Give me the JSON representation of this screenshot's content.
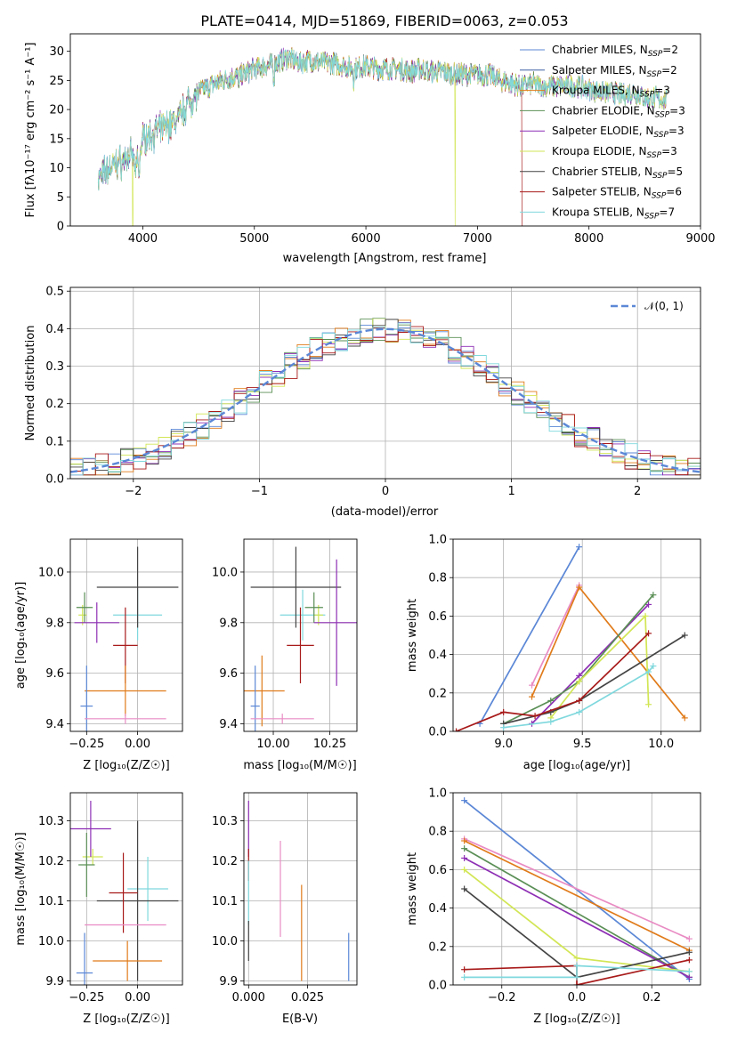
{
  "title": "PLATE=0414, MJD=51869, FIBERID=0063, z=0.053",
  "colors": {
    "chabrier_miles": "#5b87d6",
    "salpeter_miles": "#3e5fa6",
    "kroupa_miles": "#e07b1a",
    "chabrier_elodie": "#5a8f55",
    "salpeter_elodie": "#8e2fb5",
    "kroupa_elodie": "#d2e655",
    "chabrier_stelib": "#444444",
    "salpeter_stelib": "#a81a1a",
    "kroupa_stelib": "#7fd8dd",
    "pink": "#e98cc4",
    "normal": "#5b87d6",
    "grid": "#b0b0b0"
  },
  "chart_data": [
    {
      "id": "spectrum",
      "type": "line",
      "title": "PLATE=0414, MJD=51869, FIBERID=0063, z=0.053",
      "xlabel": "wavelength [Angstrom, rest frame]",
      "ylabel": "Flux [fλ10⁻¹⁷ erg cm⁻² s⁻¹ A⁻¹]",
      "xlim": [
        3350,
        9000
      ],
      "ylim": [
        0,
        33
      ],
      "xticks": [
        "4000",
        "5000",
        "6000",
        "7000",
        "8000",
        "9000"
      ],
      "yticks": [
        "0",
        "5",
        "10",
        "15",
        "20",
        "25",
        "30"
      ],
      "grid": false,
      "legend_position": "top-right",
      "legend": [
        "Chabrier MILES, N_SSP=2",
        "Salpeter MILES, N_SSP=2",
        "Kroupa MILES, N_SSP=3",
        "Chabrier ELODIE, N_SSP=3",
        "Salpeter ELODIE, N_SSP=3",
        "Kroupa ELODIE, N_SSP=3",
        "Chabrier STELIB, N_SSP=5",
        "Salpeter STELIB, N_SSP=6",
        "Kroupa STELIB, N_SSP=7"
      ],
      "continuum": [
        [
          3600,
          8
        ],
        [
          3700,
          10
        ],
        [
          3800,
          11
        ],
        [
          3900,
          12
        ],
        [
          3950,
          11
        ],
        [
          4000,
          15
        ],
        [
          4100,
          16
        ],
        [
          4200,
          17
        ],
        [
          4300,
          18
        ],
        [
          4400,
          21
        ],
        [
          4500,
          23
        ],
        [
          4600,
          24
        ],
        [
          4700,
          25
        ],
        [
          4800,
          25.5
        ],
        [
          4900,
          26
        ],
        [
          5000,
          27
        ],
        [
          5100,
          27.5
        ],
        [
          5200,
          28
        ],
        [
          5300,
          29
        ],
        [
          5400,
          28
        ],
        [
          5500,
          28.5
        ],
        [
          5600,
          28
        ],
        [
          5700,
          28
        ],
        [
          5800,
          27.5
        ],
        [
          5900,
          27
        ],
        [
          6000,
          27.5
        ],
        [
          6100,
          27
        ],
        [
          6200,
          27
        ],
        [
          6300,
          27
        ],
        [
          6400,
          26.5
        ],
        [
          6500,
          27
        ],
        [
          6600,
          26.5
        ],
        [
          6700,
          26.5
        ],
        [
          6800,
          26
        ],
        [
          6900,
          26
        ],
        [
          7000,
          26
        ],
        [
          7100,
          26
        ],
        [
          7200,
          25
        ],
        [
          7300,
          24.5
        ],
        [
          7400,
          24
        ],
        [
          7500,
          24.5
        ],
        [
          7600,
          24
        ],
        [
          7700,
          24
        ],
        [
          7800,
          24
        ],
        [
          7900,
          24
        ],
        [
          8000,
          23.5
        ],
        [
          8100,
          23
        ],
        [
          8200,
          23
        ],
        [
          8300,
          22.5
        ],
        [
          8400,
          23
        ],
        [
          8500,
          22
        ],
        [
          8600,
          22
        ],
        [
          8700,
          21.5
        ]
      ]
    },
    {
      "id": "residuals",
      "type": "histogram",
      "xlabel": "(data-model)/error",
      "ylabel": "Normed distribution",
      "xlim": [
        -2.5,
        2.5
      ],
      "ylim": [
        0,
        0.51
      ],
      "xticks": [
        "−2",
        "−1",
        "0",
        "1",
        "2"
      ],
      "yticks": [
        "0.0",
        "0.1",
        "0.2",
        "0.3",
        "0.4",
        "0.5"
      ],
      "grid": true,
      "legend_position": "top-right",
      "legend": [
        "𝒩(0, 1)"
      ]
    },
    {
      "id": "age_vs_Z",
      "type": "errorbar",
      "xlabel": "Z [log₁₀(Z/Z☉)]",
      "ylabel": "age  [log₁₀(age/yr)]",
      "xlim": [
        -0.33,
        0.22
      ],
      "ylim": [
        9.37,
        10.13
      ],
      "xticks": [
        "−0.25",
        "0.00"
      ],
      "yticks": [
        "9.4",
        "9.6",
        "9.8",
        "10.0"
      ],
      "grid": true,
      "points": [
        {
          "c": "kroupa_stelib",
          "x": 0.0,
          "y": 9.83,
          "ex": 0.12,
          "ey": 0.1
        },
        {
          "c": "chabrier_stelib",
          "x": 0.0,
          "y": 9.94,
          "ex": 0.2,
          "ey": 0.16
        },
        {
          "c": "kroupa_elodie",
          "x": -0.27,
          "y": 9.83,
          "ex": 0.02,
          "ey": 0.04
        },
        {
          "c": "chabrier_elodie",
          "x": -0.26,
          "y": 9.86,
          "ex": 0.04,
          "ey": 0.06
        },
        {
          "c": "salpeter_elodie",
          "x": -0.2,
          "y": 9.8,
          "ex": 0.11,
          "ey": 0.08
        },
        {
          "c": "salpeter_stelib",
          "x": -0.06,
          "y": 9.71,
          "ex": 0.06,
          "ey": 0.15
        },
        {
          "c": "kroupa_miles",
          "x": -0.06,
          "y": 9.53,
          "ex": 0.2,
          "ey": 0.1
        },
        {
          "c": "chabrier_miles",
          "x": -0.25,
          "y": 9.47,
          "ex": 0.03,
          "ey": 0.16
        },
        {
          "c": "pink",
          "x": -0.06,
          "y": 9.42,
          "ex": 0.2,
          "ey": 0.02
        }
      ]
    },
    {
      "id": "age_vs_mass",
      "type": "errorbar",
      "xlabel": "mass [log₁₀(M/M☉)]",
      "ylabel": "",
      "xlim": [
        9.87,
        10.37
      ],
      "ylim": [
        9.37,
        10.13
      ],
      "xticks": [
        "10.00",
        "10.25"
      ],
      "yticks": [
        "9.4",
        "9.6",
        "9.8",
        "10.0"
      ],
      "grid": true,
      "points": [
        {
          "c": "kroupa_stelib",
          "x": 10.13,
          "y": 9.83,
          "ex": 0.1,
          "ey": 0.1
        },
        {
          "c": "chabrier_stelib",
          "x": 10.1,
          "y": 9.94,
          "ex": 0.2,
          "ey": 0.16
        },
        {
          "c": "kroupa_elodie",
          "x": 10.2,
          "y": 9.83,
          "ex": 0.02,
          "ey": 0.04
        },
        {
          "c": "chabrier_elodie",
          "x": 10.18,
          "y": 9.86,
          "ex": 0.04,
          "ey": 0.06
        },
        {
          "c": "salpeter_elodie",
          "x": 10.28,
          "y": 9.8,
          "ex": 0.1,
          "ey": 0.25
        },
        {
          "c": "salpeter_stelib",
          "x": 10.12,
          "y": 9.71,
          "ex": 0.06,
          "ey": 0.15
        },
        {
          "c": "kroupa_miles",
          "x": 9.95,
          "y": 9.53,
          "ex": 0.1,
          "ey": 0.14
        },
        {
          "c": "chabrier_miles",
          "x": 9.92,
          "y": 9.47,
          "ex": 0.02,
          "ey": 0.16
        },
        {
          "c": "pink",
          "x": 10.04,
          "y": 9.42,
          "ex": 0.14,
          "ey": 0.02
        }
      ]
    },
    {
      "id": "mass_weight_vs_age",
      "type": "line",
      "xlabel": "age  [log₁₀(age/yr)]",
      "ylabel": "mass weight",
      "xlim": [
        8.68,
        10.25
      ],
      "ylim": [
        0,
        1.0
      ],
      "xticks": [
        "9.0",
        "9.5",
        "10.0"
      ],
      "yticks": [
        "0.0",
        "0.2",
        "0.4",
        "0.6",
        "0.8",
        "1.0"
      ],
      "grid": true,
      "series": [
        {
          "c": "chabrier_miles",
          "x": [
            8.85,
            9.48
          ],
          "y": [
            0.04,
            0.96
          ]
        },
        {
          "c": "pink",
          "x": [
            9.18,
            9.48
          ],
          "y": [
            0.24,
            0.76
          ]
        },
        {
          "c": "kroupa_miles",
          "x": [
            9.18,
            9.48,
            10.15
          ],
          "y": [
            0.18,
            0.75,
            0.07
          ]
        },
        {
          "c": "salpeter_elodie",
          "x": [
            9.18,
            9.48,
            9.92
          ],
          "y": [
            0.04,
            0.29,
            0.66
          ]
        },
        {
          "c": "chabrier_elodie",
          "x": [
            9.0,
            9.3,
            9.48,
            9.95
          ],
          "y": [
            0.04,
            0.16,
            0.26,
            0.71
          ]
        },
        {
          "c": "kroupa_elodie",
          "x": [
            9.3,
            9.48,
            9.9,
            9.92
          ],
          "y": [
            0.07,
            0.26,
            0.6,
            0.14
          ]
        },
        {
          "c": "chabrier_stelib",
          "x": [
            9.0,
            9.3,
            9.48,
            10.15
          ],
          "y": [
            0.04,
            0.1,
            0.16,
            0.5
          ]
        },
        {
          "c": "salpeter_stelib",
          "x": [
            8.7,
            9.0,
            9.2,
            9.48,
            9.92
          ],
          "y": [
            0.0,
            0.1,
            0.08,
            0.16,
            0.51
          ]
        },
        {
          "c": "kroupa_stelib",
          "x": [
            9.0,
            9.3,
            9.48,
            9.92,
            9.95
          ],
          "y": [
            0.02,
            0.05,
            0.1,
            0.31,
            0.34
          ]
        }
      ]
    },
    {
      "id": "mass_vs_Z",
      "type": "errorbar",
      "xlabel": "Z [log₁₀(Z/Z☉)]",
      "ylabel": "mass [log₁₀(M/M☉)]",
      "xlim": [
        -0.33,
        0.22
      ],
      "ylim": [
        9.89,
        10.37
      ],
      "xticks": [
        "−0.25",
        "0.00"
      ],
      "yticks": [
        "9.9",
        "10.0",
        "10.1",
        "10.2",
        "10.3"
      ],
      "grid": true,
      "points": [
        {
          "c": "kroupa_stelib",
          "x": 0.05,
          "y": 10.13,
          "ex": 0.1,
          "ey": 0.08
        },
        {
          "c": "chabrier_stelib",
          "x": 0.0,
          "y": 10.1,
          "ex": 0.2,
          "ey": 0.2
        },
        {
          "c": "kroupa_elodie",
          "x": -0.22,
          "y": 10.21,
          "ex": 0.05,
          "ey": 0.02
        },
        {
          "c": "chabrier_elodie",
          "x": -0.25,
          "y": 10.19,
          "ex": 0.04,
          "ey": 0.08
        },
        {
          "c": "salpeter_elodie",
          "x": -0.23,
          "y": 10.28,
          "ex": 0.1,
          "ey": 0.07
        },
        {
          "c": "salpeter_stelib",
          "x": -0.07,
          "y": 10.12,
          "ex": 0.07,
          "ey": 0.1
        },
        {
          "c": "kroupa_miles",
          "x": -0.05,
          "y": 9.95,
          "ex": 0.17,
          "ey": 0.05
        },
        {
          "c": "chabrier_miles",
          "x": -0.26,
          "y": 9.92,
          "ex": 0.04,
          "ey": 0.1
        },
        {
          "c": "pink",
          "x": -0.06,
          "y": 10.04,
          "ex": 0.2,
          "ey": 0.0
        }
      ]
    },
    {
      "id": "mass_vs_ebv",
      "type": "errorbar",
      "xlabel": "E(B-V)",
      "ylabel": "",
      "xlim": [
        -0.002,
        0.046
      ],
      "ylim": [
        9.89,
        10.37
      ],
      "xticks": [
        "0.000",
        "0.025"
      ],
      "yticks": [
        "9.9",
        "10.0",
        "10.1",
        "10.2",
        "10.3"
      ],
      "grid": true,
      "points": [
        {
          "c": "salpeter_elodie",
          "x": 0.0,
          "y": 10.28,
          "ex": 0,
          "ey": 0.07
        },
        {
          "c": "salpeter_stelib",
          "x": 0.0,
          "y": 10.19,
          "ex": 0,
          "ey": 0.04
        },
        {
          "c": "kroupa_stelib",
          "x": 0.0,
          "y": 10.12,
          "ex": 0,
          "ey": 0.08
        },
        {
          "c": "chabrier_stelib",
          "x": 0.0,
          "y": 10.0,
          "ex": 0,
          "ey": 0.05
        },
        {
          "c": "pink",
          "x": 0.0135,
          "y": 10.13,
          "ex": 0,
          "ey": 0.12
        },
        {
          "c": "kroupa_miles",
          "x": 0.0225,
          "y": 10.02,
          "ex": 0,
          "ey": 0.12
        },
        {
          "c": "chabrier_miles",
          "x": 0.0425,
          "y": 9.96,
          "ex": 0,
          "ey": 0.06
        }
      ]
    },
    {
      "id": "mass_weight_vs_Z",
      "type": "line",
      "xlabel": "Z [log₁₀(Z/Z☉)]",
      "ylabel": "mass weight",
      "xlim": [
        -0.33,
        0.33
      ],
      "ylim": [
        0,
        1.0
      ],
      "xticks": [
        "−0.2",
        "0.0",
        "0.2"
      ],
      "yticks": [
        "0.0",
        "0.2",
        "0.4",
        "0.6",
        "0.8",
        "1.0"
      ],
      "grid": true,
      "series": [
        {
          "c": "chabrier_miles",
          "x": [
            -0.3,
            0.3
          ],
          "y": [
            0.96,
            0.03
          ]
        },
        {
          "c": "pink",
          "x": [
            -0.3,
            0.3
          ],
          "y": [
            0.76,
            0.24
          ]
        },
        {
          "c": "kroupa_miles",
          "x": [
            -0.3,
            0.3
          ],
          "y": [
            0.75,
            0.18
          ]
        },
        {
          "c": "chabrier_elodie",
          "x": [
            -0.3,
            0.3
          ],
          "y": [
            0.71,
            0.04
          ]
        },
        {
          "c": "salpeter_elodie",
          "x": [
            -0.3,
            0.3
          ],
          "y": [
            0.66,
            0.04
          ]
        },
        {
          "c": "kroupa_elodie",
          "x": [
            -0.3,
            0.0,
            0.3
          ],
          "y": [
            0.6,
            0.14,
            0.07
          ]
        },
        {
          "c": "chabrier_stelib",
          "x": [
            -0.3,
            0.0,
            0.3
          ],
          "y": [
            0.5,
            0.04,
            0.17
          ]
        },
        {
          "c": "salpeter_stelib",
          "x": [
            -0.3,
            0.0,
            0.0,
            0.3
          ],
          "y": [
            0.08,
            0.1,
            0.0,
            0.13
          ]
        },
        {
          "c": "kroupa_stelib",
          "x": [
            -0.3,
            0.0,
            0.0,
            0.3
          ],
          "y": [
            0.04,
            0.04,
            0.1,
            0.07
          ]
        }
      ]
    }
  ]
}
